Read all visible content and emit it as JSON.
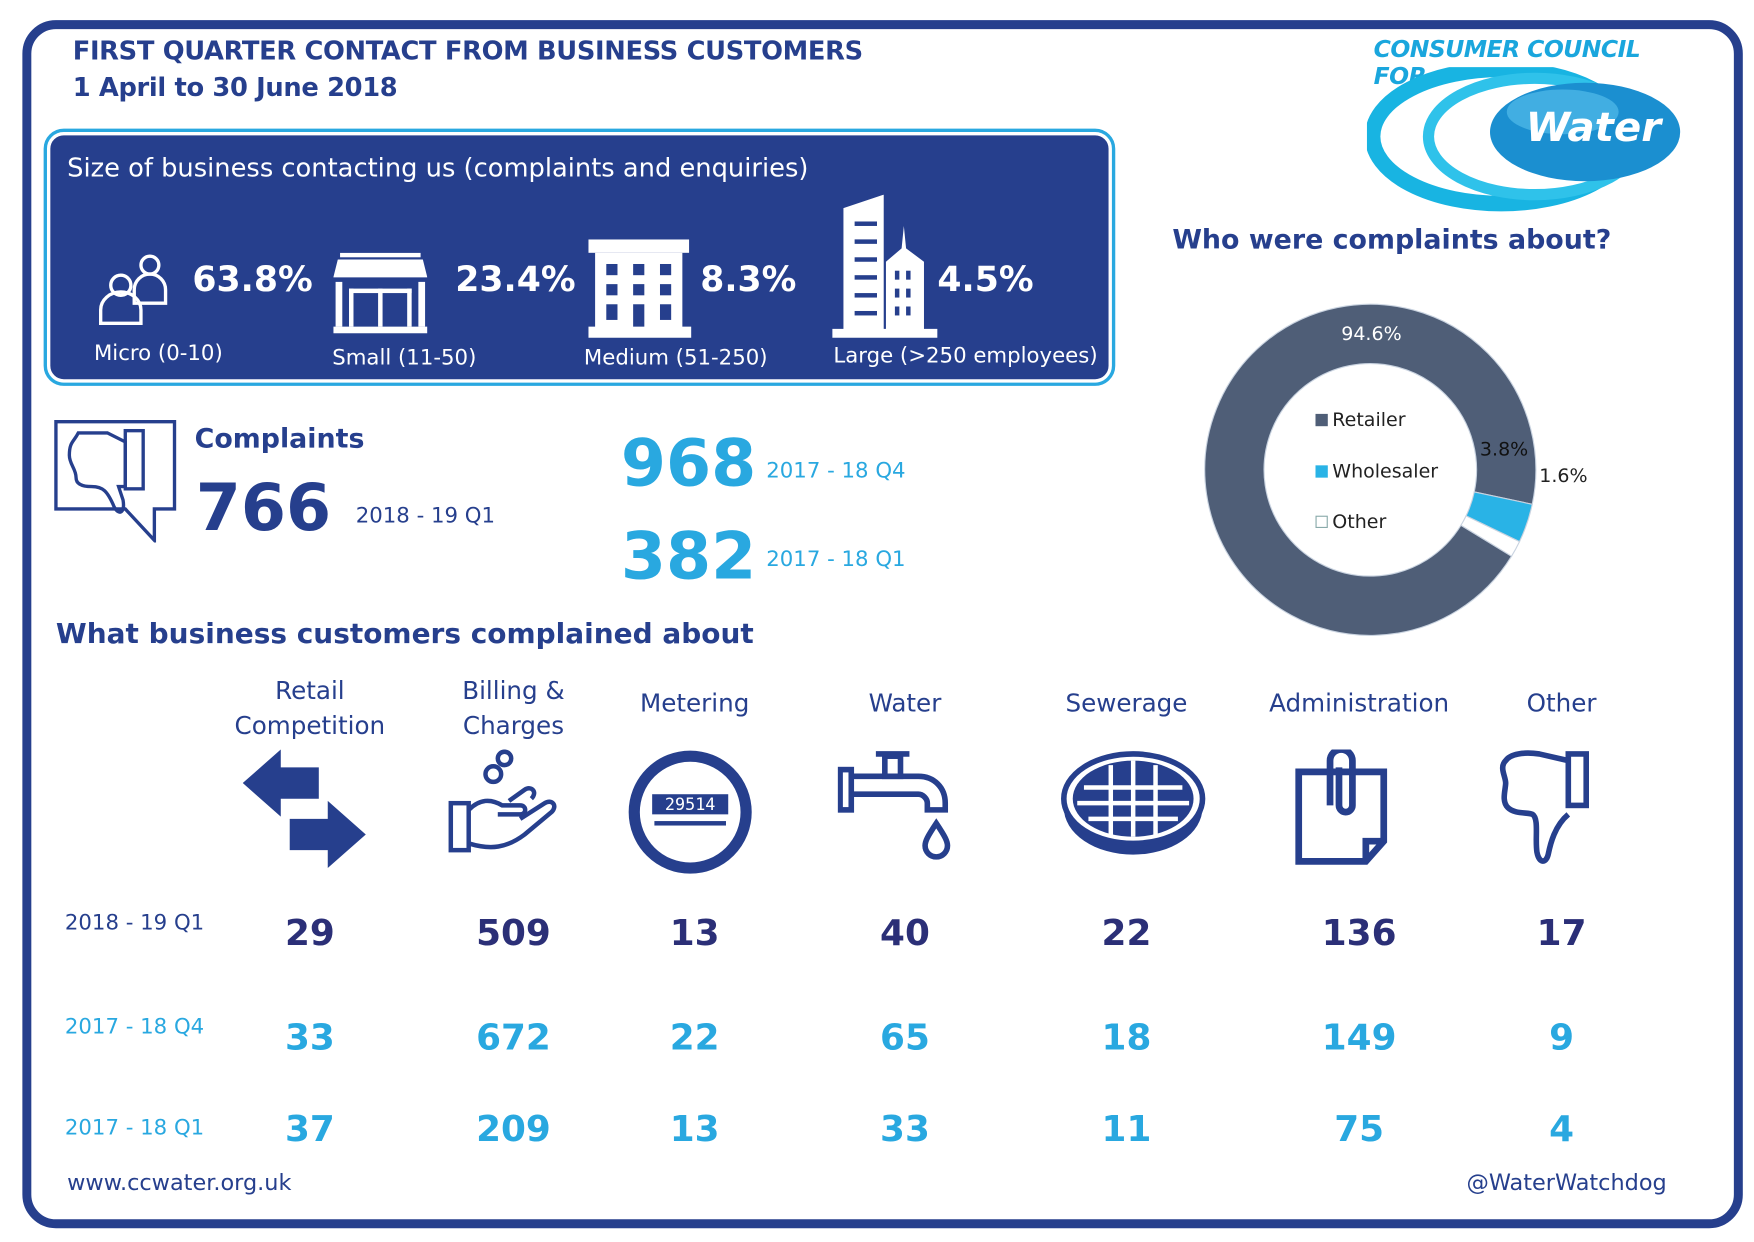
{
  "header": {
    "title": "FIRST QUARTER CONTACT FROM BUSINESS CUSTOMERS",
    "subtitle": "1 April to 30 June 2018"
  },
  "logo": {
    "line1": "CONSUMER COUNCIL FOR",
    "word": "Water"
  },
  "business_size": {
    "title": "Size of business contacting us (complaints and enquiries)",
    "items": [
      {
        "label": "Micro (0-10)",
        "percent": "63.8%",
        "icon": "people-icon"
      },
      {
        "label": "Small (11-50)",
        "percent": "23.4%",
        "icon": "shop-icon"
      },
      {
        "label": "Medium (51-250)",
        "percent": "8.3%",
        "icon": "office-building-icon"
      },
      {
        "label": "Large (>250 employees)",
        "percent": "4.5%",
        "icon": "skyscraper-icon"
      }
    ]
  },
  "complaints": {
    "label": "Complaints",
    "current": {
      "value": "766",
      "period": "2018 - 19 Q1"
    },
    "previous": [
      {
        "value": "968",
        "period": "2017 - 18 Q4"
      },
      {
        "value": "382",
        "period": "2017 - 18 Q1"
      }
    ]
  },
  "chart_data": {
    "type": "pie",
    "title": "Who were complaints about?",
    "donut": true,
    "legend_position": "center",
    "slices": [
      {
        "name": "Retailer",
        "value": 94.6,
        "label": "94.6%",
        "color": "#4f5e77"
      },
      {
        "name": "Wholesaler",
        "value": 3.8,
        "label": "3.8%",
        "color": "#29b3e6"
      },
      {
        "name": "Other",
        "value": 1.6,
        "label": "1.6%",
        "color": "#ffffff"
      }
    ]
  },
  "categories": {
    "title": "What business customers complained about",
    "columns": [
      {
        "label": "Retail\nCompetition",
        "icon": "swap-arrows-icon"
      },
      {
        "label": "Billing &\nCharges",
        "icon": "hand-coins-icon"
      },
      {
        "label": "Metering",
        "icon": "meter-icon"
      },
      {
        "label": "Water",
        "icon": "tap-icon"
      },
      {
        "label": "Sewerage",
        "icon": "manhole-icon"
      },
      {
        "label": "Administration",
        "icon": "clipboard-icon"
      },
      {
        "label": "Other",
        "icon": "thumbs-down-icon"
      }
    ],
    "meter_reading": "29514",
    "rows": [
      {
        "period": "2018 - 19 Q1",
        "values": [
          "29",
          "509",
          "13",
          "40",
          "22",
          "136",
          "17"
        ]
      },
      {
        "period": "2017 - 18 Q4",
        "values": [
          "33",
          "672",
          "22",
          "65",
          "18",
          "149",
          "9"
        ]
      },
      {
        "period": "2017 - 18 Q1",
        "values": [
          "37",
          "209",
          "13",
          "33",
          "11",
          "75",
          "4"
        ]
      }
    ]
  },
  "footer": {
    "website": "www.ccwater.org.uk",
    "twitter": "@WaterWatchdog"
  },
  "colors": {
    "navy": "#263f8d",
    "cyan": "#29a8e0",
    "dark": "#2b2f77"
  }
}
